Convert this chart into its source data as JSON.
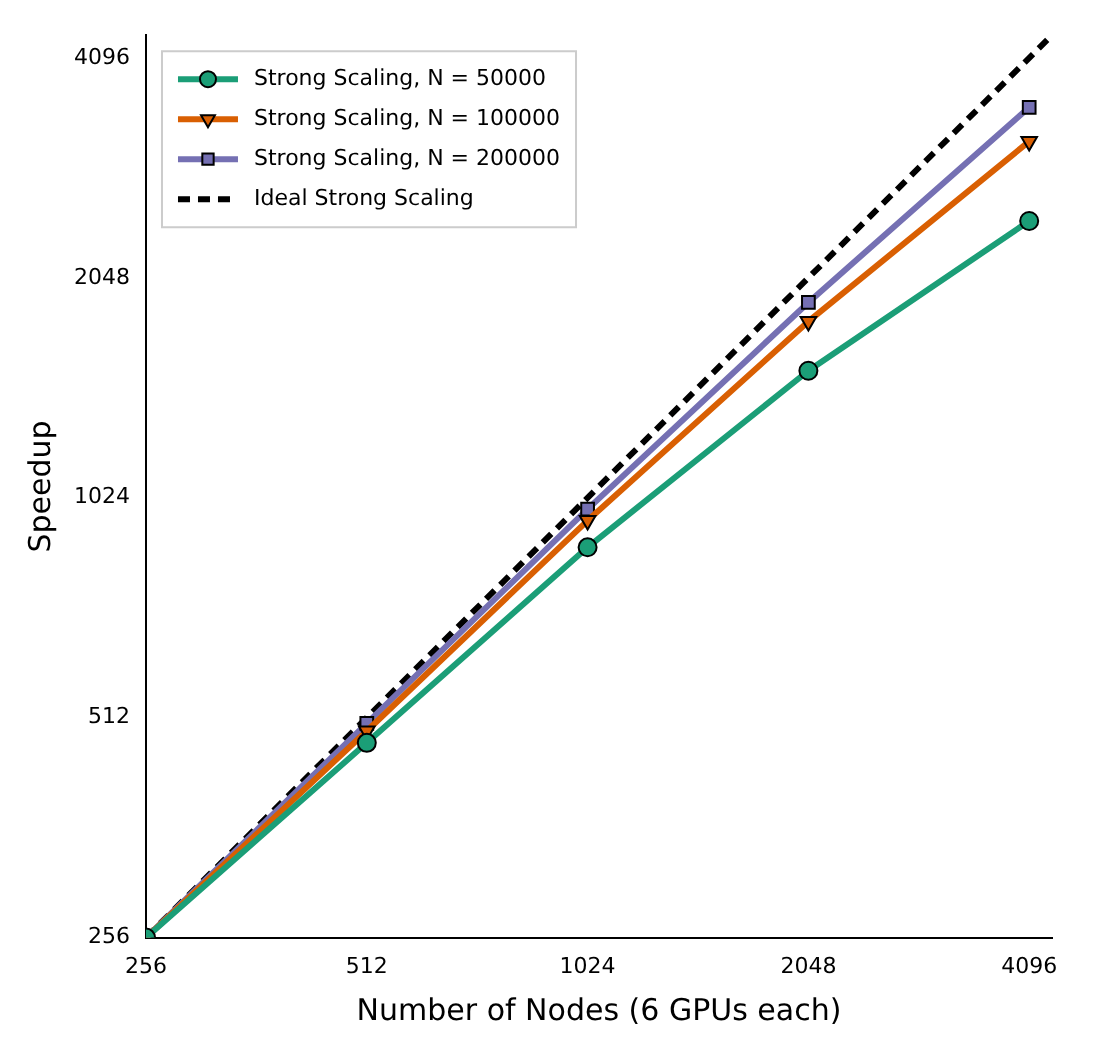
{
  "chart_data": {
    "type": "line",
    "xlabel": "Number of Nodes (6 GPUs each)",
    "ylabel": "Speedup",
    "log": "xy",
    "xlim": [
      256,
      4400
    ],
    "ylim": [
      256,
      4400
    ],
    "xticks": [
      256,
      512,
      1024,
      2048,
      4096
    ],
    "yticks": [
      256,
      512,
      1024,
      2048,
      4096
    ],
    "grid": false,
    "legend": "top left",
    "series": [
      {
        "name": "Strong Scaling, N = 50000",
        "color": "#1b9e77",
        "marker": "circle",
        "line_style": "solid",
        "x": [
          256,
          512,
          1024,
          2048,
          4096
        ],
        "values": [
          256,
          473,
          876,
          1528,
          2450
        ]
      },
      {
        "name": "Strong Scaling, N = 100000",
        "color": "#d95f02",
        "marker": "triangle",
        "line_style": "solid",
        "x": [
          256,
          512,
          1024,
          2048,
          4096
        ],
        "values": [
          256,
          491,
          953,
          1785,
          3148
        ]
      },
      {
        "name": "Strong Scaling, N = 200000",
        "color": "#7570b3",
        "marker": "square",
        "line_style": "solid",
        "x": [
          256,
          512,
          1024,
          2048,
          4096
        ],
        "values": [
          256,
          503,
          988,
          1895,
          3506
        ]
      },
      {
        "name": "Ideal Strong Scaling",
        "color": "#000000",
        "marker": "none",
        "line_style": "dashed",
        "x": [
          256,
          4400
        ],
        "values": [
          256,
          4400
        ]
      }
    ]
  }
}
